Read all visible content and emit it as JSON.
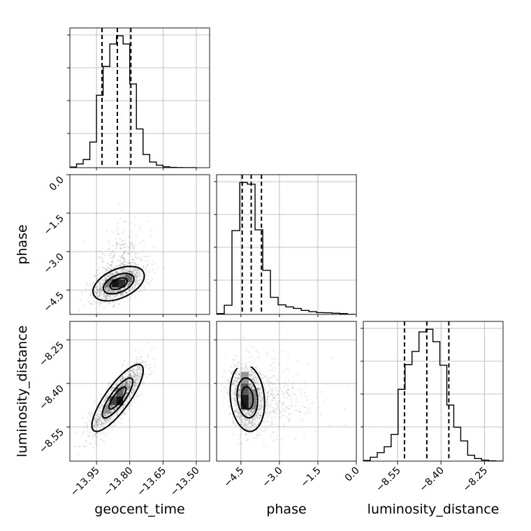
{
  "chart_data": {
    "type": "corner",
    "parameters": [
      "geocent_time",
      "phase",
      "luminosity_distance"
    ],
    "labels": {
      "geocent_time": "geocent_time",
      "phase": "phase",
      "luminosity_distance": "luminosity_distance"
    },
    "ranges": {
      "geocent_time": [
        -14.07,
        -13.44
      ],
      "phase": [
        -5.45,
        0.0
      ],
      "luminosity_distance": [
        -8.668,
        -8.186
      ]
    },
    "ticks": {
      "geocent_time": {
        "values": [
          -13.95,
          -13.8,
          -13.65,
          -13.5
        ],
        "labels": [
          "−13.95",
          "−13.80",
          "−13.65",
          "−13.50"
        ]
      },
      "phase": {
        "values": [
          -4.5,
          -3.0,
          -1.5,
          0.0
        ],
        "labels": [
          "−4.5",
          "−3.0",
          "−1.5",
          "0.0"
        ]
      },
      "luminosity_distance": {
        "values": [
          -8.55,
          -8.4,
          -8.25
        ],
        "labels": [
          "−8.55",
          "−8.40",
          "−8.25"
        ]
      }
    },
    "grid": true,
    "histograms": {
      "geocent_time": {
        "edges": [
          -14.07,
          -14.04,
          -14.01,
          -13.98,
          -13.95,
          -13.92,
          -13.89,
          -13.86,
          -13.83,
          -13.8,
          -13.77,
          -13.74,
          -13.71,
          -13.68,
          -13.65,
          -13.62,
          -13.59,
          -13.56,
          -13.53,
          -13.5
        ],
        "counts": [
          1,
          6,
          13,
          41,
          116,
          162,
          198,
          211,
          198,
          134,
          62,
          21,
          9,
          4,
          1.5,
          0.5,
          0.2,
          0,
          0
        ]
      },
      "phase": {
        "edges": [
          -5.45,
          -5.15,
          -4.85,
          -4.55,
          -4.25,
          -3.95,
          -3.65,
          -3.35,
          -3.05,
          -2.75,
          -2.45,
          -2.15,
          -1.85,
          -1.55,
          -1.25,
          -0.95,
          -0.65,
          -0.35,
          -0.05
        ],
        "counts": [
          2,
          23,
          211,
          332,
          328,
          213,
          111,
          43,
          24,
          19,
          15,
          10,
          7,
          4.5,
          4,
          3,
          2,
          0
        ]
      },
      "luminosity_distance": {
        "edges": [
          -8.668,
          -8.644,
          -8.62,
          -8.596,
          -8.572,
          -8.548,
          -8.524,
          -8.5,
          -8.476,
          -8.452,
          -8.428,
          -8.404,
          -8.38,
          -8.356,
          -8.332,
          -8.308,
          -8.284,
          -8.26,
          -8.236,
          -8.212,
          -8.188
        ],
        "counts": [
          1,
          6,
          13,
          22,
          41,
          110,
          148,
          168,
          198,
          202,
          183,
          147,
          86,
          52,
          31,
          9,
          4,
          1.5,
          0.5,
          0
        ]
      }
    },
    "quantiles": {
      "geocent_time": [
        -13.925,
        -13.856,
        -13.795
      ],
      "phase": [
        -4.45,
        -4.1,
        -3.7
      ],
      "luminosity_distance": [
        -8.526,
        -8.449,
        -8.373
      ]
    },
    "pairs": [
      {
        "x": "geocent_time",
        "y": "phase",
        "center": [
          -13.85,
          -4.25
        ],
        "sigma": [
          0.055,
          0.32
        ],
        "rho": 0.45,
        "contour_levels": [
          0.7,
          1.25,
          2.1
        ],
        "hist2d_cells": [
          {
            "x": [
              -13.88,
              -13.85
            ],
            "y": [
              -4.4,
              -4.08
            ],
            "shade": "#000000"
          },
          {
            "x": [
              -13.85,
              -13.82
            ],
            "y": [
              -4.4,
              -4.08
            ],
            "shade": "#1a1a1a"
          },
          {
            "x": [
              -13.82,
              -13.79
            ],
            "y": [
              -4.2,
              -3.9
            ],
            "shade": "#5a5a5a"
          },
          {
            "x": [
              -13.91,
              -13.88
            ],
            "y": [
              -4.4,
              -4.08
            ],
            "shade": "#6a6a6a"
          }
        ]
      },
      {
        "x": "geocent_time",
        "y": "luminosity_distance",
        "center": [
          -13.855,
          -8.45
        ],
        "sigma": [
          0.055,
          0.055
        ],
        "rho": 0.82,
        "contour_levels": [
          0.7,
          1.25,
          2.1
        ],
        "hist2d_cells": [
          {
            "x": [
              -13.86,
              -13.83
            ],
            "y": [
              -8.475,
              -8.445
            ],
            "shade": "#000000"
          },
          {
            "x": [
              -13.89,
              -13.86
            ],
            "y": [
              -8.475,
              -8.445
            ],
            "shade": "#333333"
          },
          {
            "x": [
              -13.86,
              -13.83
            ],
            "y": [
              -8.445,
              -8.415
            ],
            "shade": "#555555"
          },
          {
            "x": [
              -13.92,
              -13.89
            ],
            "y": [
              -8.505,
              -8.475
            ],
            "shade": "#8a8a8a"
          }
        ]
      },
      {
        "x": "phase",
        "y": "luminosity_distance",
        "center": [
          -4.25,
          -8.45
        ],
        "sigma": [
          0.32,
          0.055
        ],
        "rho": -0.15,
        "contour_levels": [
          0.7,
          1.25,
          2.1
        ],
        "hist2d_cells": [
          {
            "x": [
              -4.5,
              -4.2
            ],
            "y": [
              -8.49,
              -8.44
            ],
            "shade": "#000000"
          },
          {
            "x": [
              -4.5,
              -4.2
            ],
            "y": [
              -8.44,
              -8.4
            ],
            "shade": "#444444"
          },
          {
            "x": [
              -4.2,
              -3.9
            ],
            "y": [
              -8.49,
              -8.42
            ],
            "shade": "#777777"
          },
          {
            "x": [
              -4.5,
              -4.2
            ],
            "y": [
              -8.4,
              -8.36
            ],
            "shade": "#8a8a8a"
          }
        ]
      }
    ]
  }
}
